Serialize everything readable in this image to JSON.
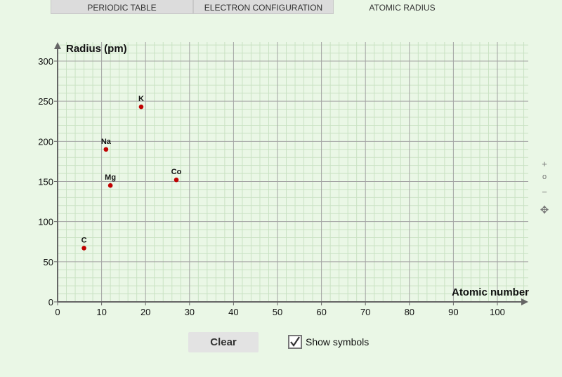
{
  "tabs": [
    {
      "label": "PERIODIC TABLE",
      "active": false
    },
    {
      "label": "ELECTRON CONFIGURATION",
      "active": false
    },
    {
      "label": "ATOMIC RADIUS",
      "active": true
    }
  ],
  "chart_data": {
    "type": "scatter",
    "xlabel": "Atomic number",
    "ylabel": "Radius (pm)",
    "xlim": [
      0,
      107
    ],
    "ylim": [
      0,
      325
    ],
    "x_ticks": [
      0,
      10,
      20,
      30,
      40,
      50,
      60,
      70,
      80,
      90,
      100
    ],
    "y_ticks": [
      0,
      50,
      100,
      150,
      200,
      250,
      300
    ],
    "minor_grid_step_x": 2,
    "minor_grid_step_y": 10,
    "grid": true,
    "point_color": "#c00000",
    "points": [
      {
        "label": "C",
        "x": 6,
        "y": 67
      },
      {
        "label": "Na",
        "x": 11,
        "y": 190
      },
      {
        "label": "Mg",
        "x": 12,
        "y": 145
      },
      {
        "label": "K",
        "x": 19,
        "y": 243
      },
      {
        "label": "Co",
        "x": 27,
        "y": 152
      }
    ]
  },
  "controls": {
    "zoom_in": "+",
    "zoom_reset": "o",
    "zoom_out": "−",
    "move": "✥",
    "clear_label": "Clear",
    "show_symbols_label": "Show symbols",
    "show_symbols_checked": true,
    "checkmark": "✔"
  }
}
